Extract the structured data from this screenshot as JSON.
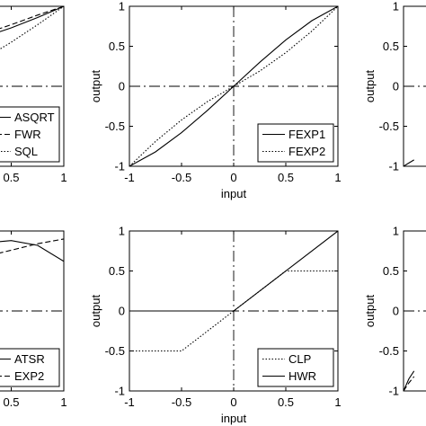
{
  "chart_data": [
    {
      "panel": "top-left",
      "type": "line",
      "xlim": [
        -1,
        1
      ],
      "ylim": [
        -1,
        1
      ],
      "xticks": [
        "0.5",
        "1"
      ],
      "yticks": [],
      "xlabel": "",
      "ylabel": "",
      "legend": {
        "placement": "bottom-right"
      },
      "series": [
        {
          "name": "ASQRT",
          "style": "solid",
          "x": [
            0,
            0.25,
            0.5,
            0.75,
            1
          ],
          "y": [
            0.5,
            0.62,
            0.73,
            0.86,
            1
          ]
        },
        {
          "name": "FWR",
          "style": "dashed",
          "x": [
            0,
            0.25,
            0.5,
            0.75,
            1
          ],
          "y": [
            0.55,
            0.66,
            0.77,
            0.89,
            1
          ]
        },
        {
          "name": "SQL",
          "style": "dotted",
          "x": [
            0,
            0.25,
            0.5,
            0.75,
            1
          ],
          "y": [
            0.2,
            0.35,
            0.55,
            0.77,
            1
          ]
        }
      ]
    },
    {
      "panel": "top-center",
      "type": "line",
      "xlim": [
        -1,
        1
      ],
      "ylim": [
        -1,
        1
      ],
      "xticks": [
        "-1",
        "-0.5",
        "0",
        "0.5",
        "1"
      ],
      "yticks": [
        "1",
        "0.5",
        "0",
        "-0.5",
        "-1"
      ],
      "xlabel": "input",
      "ylabel": "output",
      "legend": {
        "placement": "bottom-right"
      },
      "series": [
        {
          "name": "FEXP1",
          "style": "solid",
          "x": [
            -1,
            -0.75,
            -0.5,
            -0.25,
            0,
            0.25,
            0.5,
            0.75,
            1
          ],
          "y": [
            -1,
            -0.82,
            -0.58,
            -0.3,
            0,
            0.3,
            0.58,
            0.82,
            1
          ]
        },
        {
          "name": "FEXP2",
          "style": "dotted",
          "x": [
            -1,
            -0.75,
            -0.5,
            -0.25,
            0,
            0.25,
            0.5,
            0.75,
            1
          ],
          "y": [
            -1,
            -0.69,
            -0.42,
            -0.19,
            0,
            0.19,
            0.42,
            0.69,
            1
          ]
        }
      ]
    },
    {
      "panel": "top-right",
      "type": "line",
      "xlim": [
        -1,
        1
      ],
      "ylim": [
        -1,
        1
      ],
      "xticks": [],
      "yticks": [
        "1",
        "0.5",
        "0",
        "-0.5",
        "-1"
      ],
      "xlabel": "",
      "ylabel": "output",
      "series": [
        {
          "style": "solid",
          "x": [
            -1,
            -0.95,
            -0.9
          ],
          "y": [
            -1,
            -0.96,
            -0.92
          ]
        }
      ]
    },
    {
      "panel": "bottom-left",
      "type": "line",
      "xlim": [
        -1,
        1
      ],
      "ylim": [
        -1,
        1
      ],
      "xticks": [
        "0.5",
        "1"
      ],
      "yticks": [],
      "xlabel": "",
      "ylabel": "",
      "legend": {
        "placement": "bottom-right"
      },
      "series": [
        {
          "name": "ATSR",
          "style": "solid",
          "x": [
            0,
            0.25,
            0.5,
            0.75,
            1
          ],
          "y": [
            0.75,
            0.85,
            0.88,
            0.82,
            0.62
          ]
        },
        {
          "name": "EXP2",
          "style": "dashed",
          "x": [
            0,
            0.25,
            0.5,
            0.75,
            1
          ],
          "y": [
            0.6,
            0.68,
            0.76,
            0.84,
            0.9
          ]
        }
      ]
    },
    {
      "panel": "bottom-center",
      "type": "line",
      "xlim": [
        -1,
        1
      ],
      "ylim": [
        -1,
        1
      ],
      "xticks": [
        "-1",
        "-0.5",
        "0",
        "0.5",
        "1"
      ],
      "yticks": [
        "1",
        "0.5",
        "0",
        "-0.5",
        "-1"
      ],
      "xlabel": "input",
      "ylabel": "output",
      "legend": {
        "placement": "bottom-right"
      },
      "series": [
        {
          "name": "CLP",
          "style": "dotted",
          "x": [
            -1,
            -0.5,
            0,
            0.5,
            1
          ],
          "y": [
            -0.5,
            -0.5,
            0,
            0.5,
            0.5
          ]
        },
        {
          "name": "HWR",
          "style": "solid",
          "x": [
            -1,
            0,
            1
          ],
          "y": [
            0,
            0,
            1
          ]
        }
      ]
    },
    {
      "panel": "bottom-right",
      "type": "line",
      "xlim": [
        -1,
        1
      ],
      "ylim": [
        -1,
        1
      ],
      "xticks": [],
      "yticks": [
        "1",
        "0.5",
        "0",
        "-0.5",
        "-1"
      ],
      "xlabel": "",
      "ylabel": "output",
      "series": [
        {
          "style": "solid",
          "x": [
            -1,
            -0.95,
            -0.9
          ],
          "y": [
            -1,
            -0.85,
            -0.75
          ]
        },
        {
          "style": "dashed",
          "x": [
            -1,
            -0.95,
            -0.9
          ],
          "y": [
            -1,
            -0.9,
            -0.82
          ]
        }
      ]
    }
  ]
}
